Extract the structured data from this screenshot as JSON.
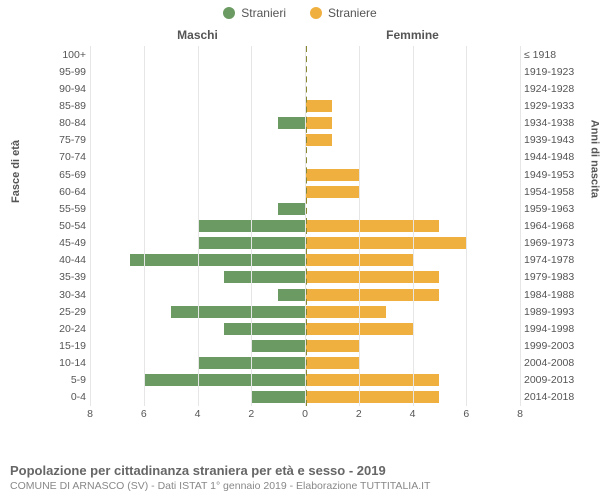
{
  "legend": {
    "items": [
      {
        "label": "Stranieri",
        "color": "#6b9b62"
      },
      {
        "label": "Straniere",
        "color": "#f0b040"
      }
    ]
  },
  "column_headers": {
    "left": "Maschi",
    "right": "Femmine"
  },
  "yaxis": {
    "left_title": "Fasce di età",
    "right_title": "Anni di nascita"
  },
  "chart": {
    "type": "bar",
    "xlim": 8,
    "xticks": [
      8,
      6,
      4,
      2,
      0,
      2,
      4,
      6,
      8
    ],
    "bar_color_left": "#6b9b62",
    "bar_color_right": "#f0b040",
    "rows": [
      {
        "age": "100+",
        "birth": "≤ 1918",
        "m": 0,
        "f": 0
      },
      {
        "age": "95-99",
        "birth": "1919-1923",
        "m": 0,
        "f": 0
      },
      {
        "age": "90-94",
        "birth": "1924-1928",
        "m": 0,
        "f": 0
      },
      {
        "age": "85-89",
        "birth": "1929-1933",
        "m": 0,
        "f": 1
      },
      {
        "age": "80-84",
        "birth": "1934-1938",
        "m": 1,
        "f": 1
      },
      {
        "age": "75-79",
        "birth": "1939-1943",
        "m": 0,
        "f": 1
      },
      {
        "age": "70-74",
        "birth": "1944-1948",
        "m": 0,
        "f": 0
      },
      {
        "age": "65-69",
        "birth": "1949-1953",
        "m": 0,
        "f": 2
      },
      {
        "age": "60-64",
        "birth": "1954-1958",
        "m": 0,
        "f": 2
      },
      {
        "age": "55-59",
        "birth": "1959-1963",
        "m": 1,
        "f": 0
      },
      {
        "age": "50-54",
        "birth": "1964-1968",
        "m": 4,
        "f": 5
      },
      {
        "age": "45-49",
        "birth": "1969-1973",
        "m": 4,
        "f": 6
      },
      {
        "age": "40-44",
        "birth": "1974-1978",
        "m": 6.5,
        "f": 4
      },
      {
        "age": "35-39",
        "birth": "1979-1983",
        "m": 3,
        "f": 5
      },
      {
        "age": "30-34",
        "birth": "1984-1988",
        "m": 1,
        "f": 5
      },
      {
        "age": "25-29",
        "birth": "1989-1993",
        "m": 5,
        "f": 3
      },
      {
        "age": "20-24",
        "birth": "1994-1998",
        "m": 3,
        "f": 4
      },
      {
        "age": "15-19",
        "birth": "1999-2003",
        "m": 2,
        "f": 2
      },
      {
        "age": "10-14",
        "birth": "2004-2008",
        "m": 4,
        "f": 2
      },
      {
        "age": "5-9",
        "birth": "2009-2013",
        "m": 6,
        "f": 5
      },
      {
        "age": "0-4",
        "birth": "2014-2018",
        "m": 2,
        "f": 5
      }
    ],
    "grid_color": "#e6e6e6",
    "background": "#ffffff"
  },
  "footer": {
    "title": "Popolazione per cittadinanza straniera per età e sesso - 2019",
    "subtitle": "COMUNE DI ARNASCO (SV) - Dati ISTAT 1° gennaio 2019 - Elaborazione TUTTITALIA.IT"
  }
}
